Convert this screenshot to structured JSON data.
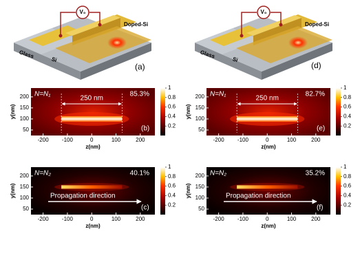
{
  "schematics": [
    {
      "label": "(a)",
      "voltage": "V₀",
      "doped": "Doped-Si",
      "glass": "Glass",
      "si": "Si"
    },
    {
      "label": "(d)",
      "voltage": "V₀",
      "doped": "Doped-Si",
      "glass": "Glass",
      "si": "Si"
    }
  ],
  "panels": [
    {
      "label": "(b)",
      "mode": "N=N₁",
      "efficiency": "85.3%",
      "dimension": "250 nm",
      "xlabel": "z(nm)",
      "ylabel": "y(nm)",
      "xlim": [
        -250,
        260
      ],
      "ylim": [
        25,
        240
      ],
      "xticks": [
        -200,
        -100,
        0,
        100,
        200
      ],
      "yticks": [
        50,
        100,
        150,
        200
      ],
      "waveguide_z": [
        -125,
        125
      ],
      "waveguide_y": 100,
      "cbar_lim": [
        0,
        1
      ],
      "cbar_ticks": [
        0.2,
        0.4,
        0.6,
        0.8,
        1
      ]
    },
    {
      "label": "(e)",
      "mode": "N=N₁",
      "efficiency": "82.7%",
      "dimension": "250 nm",
      "xlabel": "z(nm)",
      "ylabel": "y(nm)",
      "xlim": [
        -250,
        260
      ],
      "ylim": [
        25,
        240
      ],
      "xticks": [
        -200,
        -100,
        0,
        100,
        200
      ],
      "yticks": [
        50,
        100,
        150,
        200
      ],
      "waveguide_z": [
        -125,
        125
      ],
      "waveguide_y": 100,
      "cbar_lim": [
        0,
        1
      ],
      "cbar_ticks": [
        0.2,
        0.4,
        0.6,
        0.8,
        1
      ]
    },
    {
      "label": "(c)",
      "mode": "N=N₂",
      "efficiency": "40.1%",
      "direction": "Propagation direction",
      "xlabel": "z(nm)",
      "ylabel": "y(nm)",
      "xlim": [
        -250,
        260
      ],
      "ylim": [
        25,
        240
      ],
      "xticks": [
        -200,
        -100,
        0,
        100,
        200
      ],
      "yticks": [
        50,
        100,
        150,
        200
      ],
      "waveguide_z": [
        -125,
        125
      ],
      "waveguide_y": 150,
      "cbar_lim": [
        0,
        1
      ],
      "cbar_ticks": [
        0.2,
        0.4,
        0.6,
        0.8,
        1
      ]
    },
    {
      "label": "(f)",
      "mode": "N=N₂",
      "efficiency": "35.2%",
      "direction": "Propagation direction",
      "xlabel": "z(nm)",
      "ylabel": "y(nm)",
      "xlim": [
        -250,
        260
      ],
      "ylim": [
        25,
        240
      ],
      "xticks": [
        -200,
        -100,
        0,
        100,
        200
      ],
      "yticks": [
        50,
        100,
        150,
        200
      ],
      "waveguide_z": [
        -125,
        125
      ],
      "waveguide_y": 150,
      "cbar_lim": [
        0,
        1
      ],
      "cbar_ticks": [
        0.2,
        0.4,
        0.6,
        0.8,
        1
      ]
    }
  ]
}
